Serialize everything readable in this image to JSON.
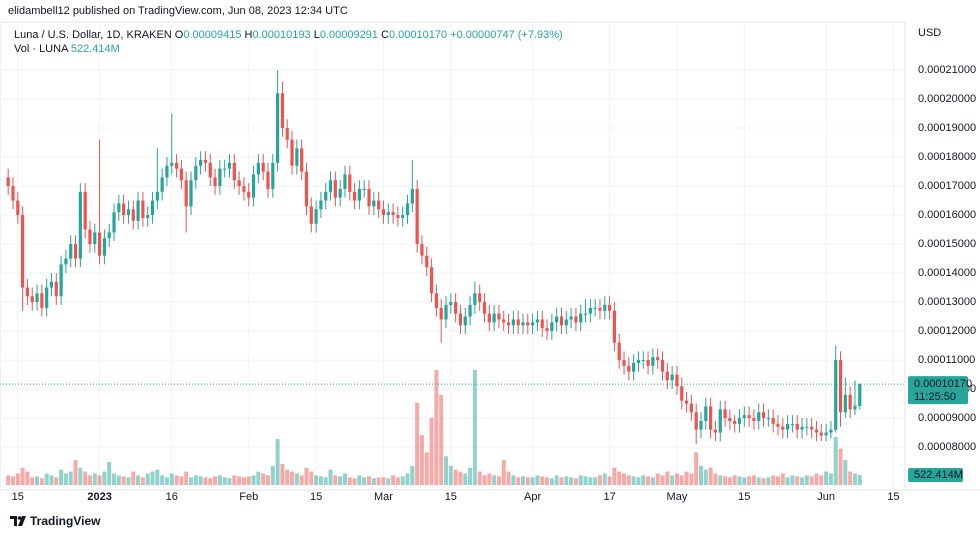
{
  "header": {
    "publisher": "elidambell12 published on TradingView.com, Jun 08, 2023 12:34 UTC",
    "brand": "TradingView"
  },
  "chart_data": {
    "type": "candlestick",
    "symbol": "Luna / U.S. Dollar, 1D, KRAKEN",
    "ohlc_legend": [
      {
        "label": "O",
        "value": "0.00009415"
      },
      {
        "label": "H",
        "value": "0.00010193"
      },
      {
        "label": "L",
        "value": "0.00009291"
      },
      {
        "label": "C",
        "value": "0.00010170"
      }
    ],
    "change": "+0.00000747 (+7.93%)",
    "currency": "USD",
    "last_price_label": "0.00010170",
    "countdown": "11:25:50",
    "up_color": "#26a69a",
    "down_color": "#ef5350",
    "open": [
      0.000173,
      0.00017,
      0.000165,
      0.00016,
      0.000135,
      0.000132,
      0.00013,
      0.000133,
      0.000128,
      0.000135,
      0.000137,
      0.000132,
      0.000143,
      0.000145,
      0.00015,
      0.000145,
      0.000168,
      0.000155,
      0.00015,
      0.000154,
      0.000146,
      0.000152,
      0.000154,
      0.000161,
      0.000164,
      0.00016,
      0.000162,
      0.000158,
      0.000165,
      0.000159,
      0.00016,
      0.000165,
      0.000168,
      0.000173,
      0.000177,
      0.000178,
      0.000176,
      0.000172,
      0.000163,
      0.000172,
      0.000177,
      0.000179,
      0.000178,
      0.000173,
      0.00017,
      0.000176,
      0.000176,
      0.000178,
      0.000172,
      0.00017,
      0.000168,
      0.000166,
      0.000174,
      0.000178,
      0.000175,
      0.000169,
      0.000178,
      0.000202,
      0.00019,
      0.000186,
      0.000177,
      0.000183,
      0.000175,
      0.000163,
      0.000157,
      0.000162,
      0.000165,
      0.000168,
      0.000172,
      0.000166,
      0.000169,
      0.000174,
      0.000168,
      0.000165,
      0.000169,
      0.000169,
      0.000163,
      0.000165,
      0.000162,
      0.00016,
      0.000161,
      0.00016,
      0.000159,
      0.00016,
      0.000164,
      0.000169,
      0.00015,
      0.000146,
      0.000142,
      0.000133,
      0.000128,
      0.000124,
      0.000129,
      0.00013,
      0.000126,
      0.000122,
      0.000125,
      0.000129,
      0.000133,
      0.00013,
      0.000126,
      0.000123,
      0.000126,
      0.000124,
      0.000123,
      0.000122,
      0.000124,
      0.000122,
      0.000123,
      0.000122,
      0.000123,
      0.000124,
      0.000121,
      0.00012,
      0.000123,
      0.000125,
      0.000122,
      0.000124,
      0.000125,
      0.000123,
      0.000126,
      0.000126,
      0.000128,
      0.000128,
      0.000127,
      0.000129,
      0.000127,
      0.000116,
      0.00011,
      0.000108,
      0.000106,
      0.000109,
      0.00011,
      0.00011,
      0.000108,
      0.000111,
      0.00011,
      0.000106,
      0.000103,
      0.000105,
      0.000101,
      9.6e-05,
      9.5e-05,
      9.2e-05,
      8.6e-05,
      8.9e-05,
      9.4e-05,
      8.6e-05,
      8.5e-05,
      9.3e-05,
      9e-05,
      8.9e-05,
      8.8e-05,
      9e-05,
      9.1e-05,
      9e-05,
      8.9e-05,
      9.2e-05,
      9e-05,
      9e-05,
      8.8e-05,
      8.7e-05,
      8.6e-05,
      8.8e-05,
      8.8e-05,
      8.6e-05,
      8.7e-05,
      8.7e-05,
      8.6e-05,
      8.5e-05,
      8.4e-05,
      8.5e-05,
      8.6e-05,
      0.00011,
      9.2e-05,
      9.8e-05,
      9.3e-05,
      9.415e-05
    ],
    "high": [
      0.000176,
      0.000173,
      0.000168,
      0.000163,
      0.000138,
      0.000135,
      0.000136,
      0.000136,
      0.000138,
      0.00014,
      0.00014,
      0.000146,
      0.000148,
      0.000153,
      0.000153,
      0.000171,
      0.000171,
      0.000158,
      0.000157,
      0.000186,
      0.000155,
      0.000157,
      0.000164,
      0.000167,
      0.000167,
      0.000165,
      0.000165,
      0.000168,
      0.000168,
      0.000163,
      0.000168,
      0.000183,
      0.000176,
      0.00018,
      0.000195,
      0.000181,
      0.000179,
      0.000175,
      0.000175,
      0.00018,
      0.000182,
      0.000182,
      0.000181,
      0.000176,
      0.000179,
      0.000179,
      0.000181,
      0.000181,
      0.000175,
      0.000173,
      0.000171,
      0.000177,
      0.000181,
      0.000181,
      0.000178,
      0.000181,
      0.00021,
      0.000206,
      0.000193,
      0.000189,
      0.000186,
      0.000186,
      0.000178,
      0.000166,
      0.000165,
      0.000168,
      0.000171,
      0.000175,
      0.000175,
      0.000172,
      0.000177,
      0.000177,
      0.000171,
      0.000172,
      0.000172,
      0.000172,
      0.000168,
      0.000168,
      0.000165,
      0.000164,
      0.000164,
      0.000163,
      0.000163,
      0.000167,
      0.000179,
      0.000172,
      0.000153,
      0.000149,
      0.000145,
      0.000136,
      0.000131,
      0.000132,
      0.000133,
      0.000133,
      0.000129,
      0.000128,
      0.000132,
      0.000137,
      0.000136,
      0.000133,
      0.000129,
      0.000129,
      0.000129,
      0.000127,
      0.000126,
      0.000127,
      0.000127,
      0.000126,
      0.000126,
      0.000126,
      0.000127,
      0.000127,
      0.000124,
      0.000126,
      0.000128,
      0.000128,
      0.000127,
      0.000128,
      0.000128,
      0.000129,
      0.000131,
      0.000131,
      0.000131,
      0.000131,
      0.000132,
      0.000132,
      0.00013,
      0.000119,
      0.000113,
      0.000111,
      0.000112,
      0.000113,
      0.000113,
      0.000113,
      0.000114,
      0.000114,
      0.000113,
      0.000109,
      0.000108,
      0.000108,
      0.000104,
      9.9e-05,
      9.8e-05,
      9.5e-05,
      9.2e-05,
      9.7e-05,
      9.7e-05,
      8.9e-05,
      9.6e-05,
      9.6e-05,
      9.3e-05,
      9.1e-05,
      9.3e-05,
      9.4e-05,
      9.4e-05,
      9.3e-05,
      9.5e-05,
      9.5e-05,
      9.3e-05,
      9.3e-05,
      9.1e-05,
      9e-05,
      9.1e-05,
      9.1e-05,
      9.1e-05,
      9e-05,
      9e-05,
      9e-05,
      8.9e-05,
      8.8e-05,
      8.8e-05,
      8.9e-05,
      0.000115,
      0.000113,
      0.000104,
      0.000101,
      0.000103,
      0.00010193
    ],
    "low": [
      0.000167,
      0.000162,
      0.000157,
      0.000127,
      0.000129,
      0.000127,
      0.000127,
      0.000125,
      0.000125,
      0.000132,
      0.000129,
      0.000129,
      0.00014,
      0.000142,
      0.000142,
      0.000142,
      0.000152,
      0.000147,
      0.000147,
      0.000143,
      0.000143,
      0.000149,
      0.000151,
      0.000158,
      0.000157,
      0.000157,
      0.000155,
      0.000155,
      0.000156,
      0.000156,
      0.000157,
      0.000162,
      0.000165,
      0.00017,
      0.000174,
      0.000173,
      0.000169,
      0.000154,
      0.00016,
      0.000169,
      0.000174,
      0.000175,
      0.00017,
      0.000167,
      0.000167,
      0.000173,
      0.000173,
      0.000169,
      0.000167,
      0.000165,
      0.000163,
      0.000163,
      0.000171,
      0.000172,
      0.000166,
      0.000166,
      0.000175,
      0.000187,
      0.000183,
      0.000174,
      0.000174,
      0.000172,
      0.00016,
      0.000154,
      0.000154,
      0.000159,
      0.000162,
      0.000165,
      0.000163,
      0.000163,
      0.000166,
      0.000165,
      0.000162,
      0.000162,
      0.000166,
      0.00016,
      0.00016,
      0.000159,
      0.000157,
      0.000157,
      0.000157,
      0.000156,
      0.000156,
      0.000157,
      0.000161,
      0.000147,
      0.000143,
      0.000139,
      0.00013,
      0.000125,
      0.000116,
      0.000121,
      0.000126,
      0.000123,
      0.000119,
      0.000119,
      0.000122,
      0.000126,
      0.000127,
      0.000123,
      0.00012,
      0.00012,
      0.000121,
      0.00012,
      0.000119,
      0.000119,
      0.000119,
      0.000119,
      0.000119,
      0.000119,
      0.00012,
      0.000118,
      0.000117,
      0.000117,
      0.00012,
      0.000119,
      0.000119,
      0.000121,
      0.00012,
      0.00012,
      0.000123,
      0.000123,
      0.000125,
      0.000124,
      0.000124,
      0.000124,
      0.000113,
      0.000107,
      0.000105,
      0.000103,
      0.000103,
      0.000106,
      0.000107,
      0.000105,
      0.000105,
      0.000107,
      0.000103,
      0.0001,
      0.0001,
      9.8e-05,
      9.3e-05,
      9.2e-05,
      8.9e-05,
      8.1e-05,
      8.3e-05,
      8.6e-05,
      8.3e-05,
      8.2e-05,
      8.2e-05,
      8.7e-05,
      8.6e-05,
      8.5e-05,
      8.5e-05,
      8.7e-05,
      8.7e-05,
      8.6e-05,
      8.6e-05,
      8.7e-05,
      8.7e-05,
      8.5e-05,
      8.4e-05,
      8.3e-05,
      8.3e-05,
      8.5e-05,
      8.3e-05,
      8.3e-05,
      8.4e-05,
      8.3e-05,
      8.2e-05,
      8.2e-05,
      8.2e-05,
      8.3e-05,
      8.5e-05,
      8.7e-05,
      9e-05,
      9e-05,
      9.1e-05,
      9.291e-05
    ],
    "close": [
      0.00017,
      0.000165,
      0.00016,
      0.000135,
      0.000132,
      0.00013,
      0.000133,
      0.000128,
      0.000135,
      0.000137,
      0.000132,
      0.000143,
      0.000145,
      0.00015,
      0.000145,
      0.000168,
      0.000155,
      0.00015,
      0.000154,
      0.000146,
      0.000152,
      0.000154,
      0.000161,
      0.000164,
      0.00016,
      0.000162,
      0.000158,
      0.000165,
      0.000159,
      0.00016,
      0.000165,
      0.000168,
      0.000173,
      0.000177,
      0.000178,
      0.000176,
      0.000172,
      0.000163,
      0.000172,
      0.000177,
      0.000179,
      0.000178,
      0.000173,
      0.00017,
      0.000176,
      0.000176,
      0.000178,
      0.000172,
      0.00017,
      0.000168,
      0.000166,
      0.000174,
      0.000178,
      0.000175,
      0.000169,
      0.000178,
      0.000202,
      0.00019,
      0.000186,
      0.000177,
      0.000183,
      0.000175,
      0.000163,
      0.000157,
      0.000162,
      0.000165,
      0.000168,
      0.000172,
      0.000166,
      0.000169,
      0.000174,
      0.000168,
      0.000165,
      0.000169,
      0.000169,
      0.000163,
      0.000165,
      0.000162,
      0.00016,
      0.000161,
      0.00016,
      0.000159,
      0.00016,
      0.000164,
      0.000169,
      0.00015,
      0.000146,
      0.000142,
      0.000133,
      0.000128,
      0.000124,
      0.000129,
      0.00013,
      0.000126,
      0.000122,
      0.000125,
      0.000129,
      0.000133,
      0.00013,
      0.000126,
      0.000123,
      0.000126,
      0.000124,
      0.000123,
      0.000122,
      0.000124,
      0.000122,
      0.000123,
      0.000122,
      0.000123,
      0.000124,
      0.000121,
      0.00012,
      0.000123,
      0.000125,
      0.000122,
      0.000124,
      0.000125,
      0.000123,
      0.000126,
      0.000126,
      0.000128,
      0.000128,
      0.000127,
      0.000129,
      0.000127,
      0.000116,
      0.00011,
      0.000108,
      0.000106,
      0.000109,
      0.00011,
      0.00011,
      0.000108,
      0.000111,
      0.00011,
      0.000106,
      0.000103,
      0.000105,
      0.000101,
      9.6e-05,
      9.5e-05,
      9.2e-05,
      8.6e-05,
      8.9e-05,
      9.4e-05,
      8.6e-05,
      8.5e-05,
      9.3e-05,
      9e-05,
      8.9e-05,
      8.8e-05,
      9e-05,
      9.1e-05,
      9e-05,
      8.9e-05,
      9.2e-05,
      9e-05,
      9e-05,
      8.8e-05,
      8.7e-05,
      8.6e-05,
      8.8e-05,
      8.8e-05,
      8.6e-05,
      8.7e-05,
      8.7e-05,
      8.6e-05,
      8.5e-05,
      8.4e-05,
      8.5e-05,
      8.6e-05,
      0.00011,
      9.2e-05,
      9.8e-05,
      9.3e-05,
      9.423e-05,
      0.0001017
    ],
    "volume": {
      "name": "Vol · LUNA",
      "last_label": "522.414M",
      "values": [
        500,
        450,
        600,
        900,
        700,
        400,
        450,
        350,
        600,
        500,
        400,
        800,
        600,
        700,
        1300,
        900,
        700,
        500,
        600,
        500,
        700,
        1200,
        600,
        500,
        450,
        400,
        700,
        500,
        400,
        600,
        700,
        800,
        500,
        400,
        600,
        500,
        450,
        700,
        400,
        500,
        450,
        400,
        350,
        450,
        500,
        400,
        350,
        500,
        450,
        400,
        450,
        500,
        700,
        600,
        500,
        1000,
        2400,
        1100,
        800,
        700,
        600,
        500,
        900,
        700,
        500,
        450,
        400,
        800,
        500,
        450,
        600,
        400,
        350,
        500,
        400,
        450,
        350,
        400,
        400,
        350,
        500,
        400,
        450,
        600,
        1000,
        4300,
        2600,
        1700,
        3500,
        6000,
        4700,
        1500,
        1000,
        800,
        700,
        600,
        900,
        6000,
        700,
        500,
        600,
        500,
        450,
        1300,
        700,
        500,
        400,
        450,
        400,
        400,
        500,
        450,
        400,
        350,
        500,
        400,
        450,
        400,
        350,
        500,
        450,
        400,
        400,
        500,
        600,
        450,
        900,
        700,
        600,
        500,
        450,
        400,
        500,
        450,
        400,
        600,
        500,
        700,
        500,
        600,
        500,
        700,
        600,
        1700,
        1000,
        800,
        900,
        600,
        500,
        450,
        400,
        500,
        450,
        400,
        450,
        500,
        400,
        350,
        400,
        500,
        450,
        600,
        400,
        500,
        450,
        400,
        500,
        450,
        600,
        500,
        700,
        600,
        2500,
        1900,
        1300,
        700,
        600,
        522.414
      ]
    },
    "xlim": [
      -1.7,
      186.4
    ],
    "xticks": [
      {
        "value": 2,
        "label": "15"
      },
      {
        "value": 19,
        "label": "2023"
      },
      {
        "value": 34,
        "label": "16"
      },
      {
        "value": 50,
        "label": "Feb"
      },
      {
        "value": 64,
        "label": "15"
      },
      {
        "value": 78,
        "label": "Mar"
      },
      {
        "value": 92,
        "label": "15"
      },
      {
        "value": 109,
        "label": "Apr"
      },
      {
        "value": 125,
        "label": "17"
      },
      {
        "value": 139,
        "label": "May"
      },
      {
        "value": 153,
        "label": "15"
      },
      {
        "value": 170,
        "label": "Jun"
      },
      {
        "value": 184,
        "label": "15"
      }
    ],
    "ylim": [
      6.52e-05,
      0.0002238
    ],
    "yticks": [
      {
        "value": 8e-05,
        "label": "0.00008000"
      },
      {
        "value": 9e-05,
        "label": "0.00009000"
      },
      {
        "value": 0.0001,
        "label": "0.00010000"
      },
      {
        "value": 0.00011,
        "label": "0.00011000"
      },
      {
        "value": 0.00012,
        "label": "0.00012000"
      },
      {
        "value": 0.00013,
        "label": "0.00013000"
      },
      {
        "value": 0.00014,
        "label": "0.00014000"
      },
      {
        "value": 0.00015,
        "label": "0.00015000"
      },
      {
        "value": 0.00016,
        "label": "0.00016000"
      },
      {
        "value": 0.00017,
        "label": "0.00017000"
      },
      {
        "value": 0.00018,
        "label": "0.00018000"
      },
      {
        "value": 0.00019,
        "label": "0.00019000"
      },
      {
        "value": 0.0002,
        "label": "0.00020000"
      },
      {
        "value": 0.00021,
        "label": "0.00021000"
      }
    ],
    "grid": true
  }
}
